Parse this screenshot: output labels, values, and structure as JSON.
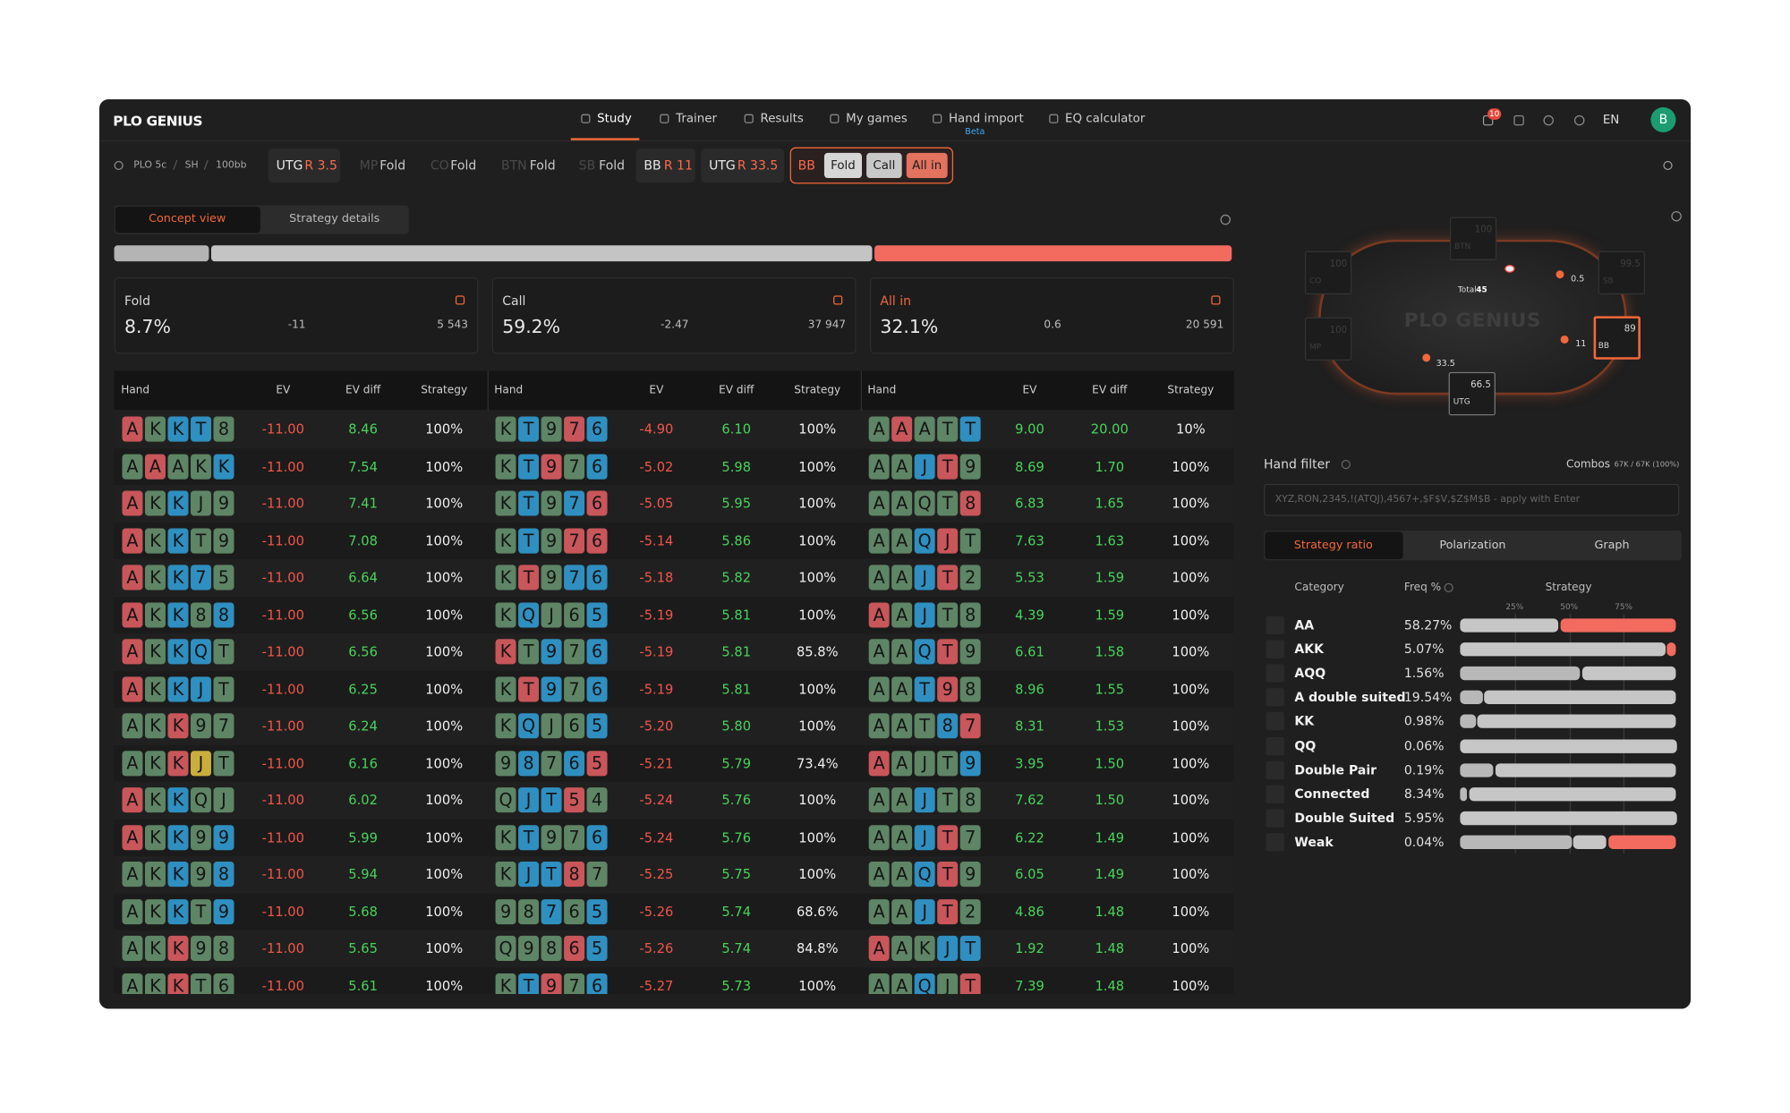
{
  "nav": {
    "logo": "PLO GENIUS",
    "items": [
      "Study",
      "Trainer",
      "Results",
      "My games",
      "Hand import",
      "EQ calculator"
    ],
    "beta": "Beta",
    "notifications": "10",
    "language": "EN",
    "avatar": "B"
  },
  "actions": {
    "settings": [
      "PLO 5c",
      "SH",
      "100bb"
    ],
    "steps": [
      {
        "position": "UTG",
        "action": "R 3.5"
      },
      {
        "position": "MP",
        "action": "Fold"
      },
      {
        "position": "CO",
        "action": "Fold"
      },
      {
        "position": "BTN",
        "action": "Fold"
      },
      {
        "position": "SB",
        "action": "Fold"
      },
      {
        "position": "BB",
        "action": "R 11"
      },
      {
        "position": "UTG",
        "action": "R 33.5"
      }
    ],
    "current": {
      "position": "BB",
      "options": [
        "Fold",
        "Call",
        "All in"
      ]
    }
  },
  "view_tabs": [
    "Concept view",
    "Strategy details"
  ],
  "summary": [
    {
      "name": "Fold",
      "value": 8.7,
      "value_label": "8.7%",
      "ev": -11,
      "combos": {
        "value": 5543,
        "label": "5 543"
      },
      "color": "#b4b4b4"
    },
    {
      "name": "Call",
      "value": 59.2,
      "value_label": "59.2%",
      "ev": -2.47,
      "combos": {
        "value": 37947,
        "label": "37 947"
      },
      "color": "#c4c4c4"
    },
    {
      "name": "All in",
      "value": 32.1,
      "value_label": "32.1%",
      "ev": 0.6,
      "combos": {
        "value": 20591,
        "label": "20 591"
      },
      "color": "#f26b5e"
    }
  ],
  "suit_colors": {
    "r": "#c8565a",
    "g": "#5e8565",
    "b": "#2f8fc0",
    "y": "#c9ad3d"
  },
  "hand_table": {
    "headers": [
      "Hand",
      "EV",
      "EV diff",
      "Strategy"
    ],
    "groups": [
      [
        {
          "hand": "AKKT8",
          "suits": "rgbbg",
          "ev": "-11.00",
          "ev_diff": "8.46",
          "strategy": "100%"
        },
        {
          "hand": "AAAKK",
          "suits": "grggb",
          "ev": "-11.00",
          "ev_diff": "7.54",
          "strategy": "100%"
        },
        {
          "hand": "AKKJ9",
          "suits": "rgbgg",
          "ev": "-11.00",
          "ev_diff": "7.41",
          "strategy": "100%"
        },
        {
          "hand": "AKKT9",
          "suits": "rgbgg",
          "ev": "-11.00",
          "ev_diff": "7.08",
          "strategy": "100%"
        },
        {
          "hand": "AKK75",
          "suits": "rgbbg",
          "ev": "-11.00",
          "ev_diff": "6.64",
          "strategy": "100%"
        },
        {
          "hand": "AKK88",
          "suits": "rgbgb",
          "ev": "-11.00",
          "ev_diff": "6.56",
          "strategy": "100%"
        },
        {
          "hand": "AKKQT",
          "suits": "rgbbg",
          "ev": "-11.00",
          "ev_diff": "6.56",
          "strategy": "100%"
        },
        {
          "hand": "AKKJT",
          "suits": "rgbbg",
          "ev": "-11.00",
          "ev_diff": "6.25",
          "strategy": "100%"
        },
        {
          "hand": "AKK97",
          "suits": "ggrgg",
          "ev": "-11.00",
          "ev_diff": "6.24",
          "strategy": "100%"
        },
        {
          "hand": "AKKJT",
          "suits": "ggryg",
          "ev": "-11.00",
          "ev_diff": "6.16",
          "strategy": "100%"
        },
        {
          "hand": "AKKQJ",
          "suits": "rgbgg",
          "ev": "-11.00",
          "ev_diff": "6.02",
          "strategy": "100%"
        },
        {
          "hand": "AKK99",
          "suits": "rgbgb",
          "ev": "-11.00",
          "ev_diff": "5.99",
          "strategy": "100%"
        },
        {
          "hand": "AKK98",
          "suits": "ggbgb",
          "ev": "-11.00",
          "ev_diff": "5.94",
          "strategy": "100%"
        },
        {
          "hand": "AKKT9",
          "suits": "ggbgb",
          "ev": "-11.00",
          "ev_diff": "5.68",
          "strategy": "100%"
        },
        {
          "hand": "AKK98",
          "suits": "ggrgg",
          "ev": "-11.00",
          "ev_diff": "5.65",
          "strategy": "100%"
        },
        {
          "hand": "AKKT6",
          "suits": "ggrgg",
          "ev": "-11.00",
          "ev_diff": "5.61",
          "strategy": "100%"
        }
      ],
      [
        {
          "hand": "KT976",
          "suits": "gbgrb",
          "ev": "-4.90",
          "ev_diff": "6.10",
          "strategy": "100%"
        },
        {
          "hand": "KT976",
          "suits": "gbrgb",
          "ev": "-5.02",
          "ev_diff": "5.98",
          "strategy": "100%"
        },
        {
          "hand": "KT976",
          "suits": "gbgbr",
          "ev": "-5.05",
          "ev_diff": "5.95",
          "strategy": "100%"
        },
        {
          "hand": "KT976",
          "suits": "gbgrr",
          "ev": "-5.14",
          "ev_diff": "5.86",
          "strategy": "100%"
        },
        {
          "hand": "KT976",
          "suits": "grgbb",
          "ev": "-5.18",
          "ev_diff": "5.82",
          "strategy": "100%"
        },
        {
          "hand": "KQJ65",
          "suits": "gbggb",
          "ev": "-5.19",
          "ev_diff": "5.81",
          "strategy": "100%"
        },
        {
          "hand": "KT976",
          "suits": "rgbgb",
          "ev": "-5.19",
          "ev_diff": "5.81",
          "strategy": "85.8%"
        },
        {
          "hand": "KT976",
          "suits": "grbgb",
          "ev": "-5.19",
          "ev_diff": "5.81",
          "strategy": "100%"
        },
        {
          "hand": "KQJ65",
          "suits": "gbggb",
          "ev": "-5.20",
          "ev_diff": "5.80",
          "strategy": "100%"
        },
        {
          "hand": "98765",
          "suits": "gbgbr",
          "ev": "-5.21",
          "ev_diff": "5.79",
          "strategy": "73.4%"
        },
        {
          "hand": "QJT54",
          "suits": "gbbrg",
          "ev": "-5.24",
          "ev_diff": "5.76",
          "strategy": "100%"
        },
        {
          "hand": "KT976",
          "suits": "gbggb",
          "ev": "-5.24",
          "ev_diff": "5.76",
          "strategy": "100%"
        },
        {
          "hand": "KJT87",
          "suits": "gbbrg",
          "ev": "-5.25",
          "ev_diff": "5.75",
          "strategy": "100%"
        },
        {
          "hand": "98765",
          "suits": "ggbgb",
          "ev": "-5.26",
          "ev_diff": "5.74",
          "strategy": "68.6%"
        },
        {
          "hand": "Q9865",
          "suits": "gggrb",
          "ev": "-5.26",
          "ev_diff": "5.74",
          "strategy": "84.8%"
        },
        {
          "hand": "KT976",
          "suits": "gbrgb",
          "ev": "-5.27",
          "ev_diff": "5.73",
          "strategy": "100%"
        }
      ],
      [
        {
          "hand": "AAATT",
          "suits": "grggb",
          "ev": "9.00",
          "ev_diff": "20.00",
          "strategy": "10%"
        },
        {
          "hand": "AAJT9",
          "suits": "ggbrg",
          "ev": "8.69",
          "ev_diff": "1.70",
          "strategy": "100%"
        },
        {
          "hand": "AAQT8",
          "suits": "ggggr",
          "ev": "6.83",
          "ev_diff": "1.65",
          "strategy": "100%"
        },
        {
          "hand": "AAQJT",
          "suits": "ggbrg",
          "ev": "7.63",
          "ev_diff": "1.63",
          "strategy": "100%"
        },
        {
          "hand": "AAJT2",
          "suits": "ggbrg",
          "ev": "5.53",
          "ev_diff": "1.59",
          "strategy": "100%"
        },
        {
          "hand": "AAJT8",
          "suits": "rgbgg",
          "ev": "4.39",
          "ev_diff": "1.59",
          "strategy": "100%"
        },
        {
          "hand": "AAQT9",
          "suits": "ggbrg",
          "ev": "6.61",
          "ev_diff": "1.58",
          "strategy": "100%"
        },
        {
          "hand": "AAT98",
          "suits": "ggbrg",
          "ev": "8.96",
          "ev_diff": "1.55",
          "strategy": "100%"
        },
        {
          "hand": "AAT87",
          "suits": "gggbr",
          "ev": "8.31",
          "ev_diff": "1.53",
          "strategy": "100%"
        },
        {
          "hand": "AAJT9",
          "suits": "rgggb",
          "ev": "3.95",
          "ev_diff": "1.50",
          "strategy": "100%"
        },
        {
          "hand": "AAJT8",
          "suits": "ggbgg",
          "ev": "7.62",
          "ev_diff": "1.50",
          "strategy": "100%"
        },
        {
          "hand": "AAJT7",
          "suits": "ggbrg",
          "ev": "6.22",
          "ev_diff": "1.49",
          "strategy": "100%"
        },
        {
          "hand": "AAQT9",
          "suits": "ggbrg",
          "ev": "6.05",
          "ev_diff": "1.49",
          "strategy": "100%"
        },
        {
          "hand": "AAJT2",
          "suits": "ggbrg",
          "ev": "4.86",
          "ev_diff": "1.48",
          "strategy": "100%"
        },
        {
          "hand": "AAKJT",
          "suits": "rggbb",
          "ev": "1.92",
          "ev_diff": "1.48",
          "strategy": "100%"
        },
        {
          "hand": "AAQJT",
          "suits": "ggbgr",
          "ev": "7.39",
          "ev_diff": "1.48",
          "strategy": "100%"
        }
      ]
    ]
  },
  "poker_table": {
    "logo": "PLO GENIUS",
    "seats": [
      {
        "stack": "66.5",
        "label": "UTG",
        "active": true,
        "hero": false
      },
      {
        "stack": "100",
        "label": "MP",
        "active": false,
        "hero": false
      },
      {
        "stack": "100",
        "label": "CO",
        "active": false,
        "hero": false
      },
      {
        "stack": "100",
        "label": "BTN",
        "active": false,
        "hero": false
      },
      {
        "stack": "99.5",
        "label": "SB",
        "active": false,
        "hero": false
      },
      {
        "stack": "89",
        "label": "BB",
        "active": true,
        "hero": true
      }
    ],
    "pot_label": "Total",
    "pot": "45",
    "bets": [
      "33.5",
      "0.5",
      "11"
    ]
  },
  "hand_filter": {
    "label": "Hand filter",
    "combos_label": "Combos",
    "combos": "67K / 67K (100%)",
    "placeholder": "XYZ,RON,2345,!(ATQJ),4567+,$F$V,$Z$M$B - apply with Enter"
  },
  "ratio_tabs": [
    "Strategy ratio",
    "Polarization",
    "Graph"
  ],
  "categories": {
    "headers": [
      "Category",
      "Freq %",
      "Strategy"
    ],
    "axis_ticks": [
      {
        "value": 25,
        "label": "25%"
      },
      {
        "value": 50,
        "label": "50%"
      },
      {
        "value": 75,
        "label": "75%"
      }
    ],
    "segment_colors": [
      "#b8b8b8",
      "#c6c6c6",
      "#f26b5e"
    ],
    "rows": [
      {
        "name": "AA",
        "freq": "58.27%",
        "strategy": [
          0,
          46,
          54
        ]
      },
      {
        "name": "AKK",
        "freq": "5.07%",
        "strategy": [
          0,
          95,
          5
        ]
      },
      {
        "name": "AQQ",
        "freq": "1.56%",
        "strategy": [
          56,
          44,
          0
        ]
      },
      {
        "name": "A double suited",
        "freq": "19.54%",
        "strategy": [
          11,
          89,
          0
        ]
      },
      {
        "name": "KK",
        "freq": "0.98%",
        "strategy": [
          8,
          92,
          0
        ]
      },
      {
        "name": "QQ",
        "freq": "0.06%",
        "strategy": [
          0,
          100,
          0
        ]
      },
      {
        "name": "Double Pair",
        "freq": "0.19%",
        "strategy": [
          16,
          84,
          0
        ]
      },
      {
        "name": "Connected",
        "freq": "8.34%",
        "strategy": [
          4,
          96,
          0
        ]
      },
      {
        "name": "Double Suited",
        "freq": "5.95%",
        "strategy": [
          0,
          100,
          0
        ]
      },
      {
        "name": "Weak",
        "freq": "0.04%",
        "strategy": [
          52,
          16,
          32
        ]
      }
    ]
  }
}
